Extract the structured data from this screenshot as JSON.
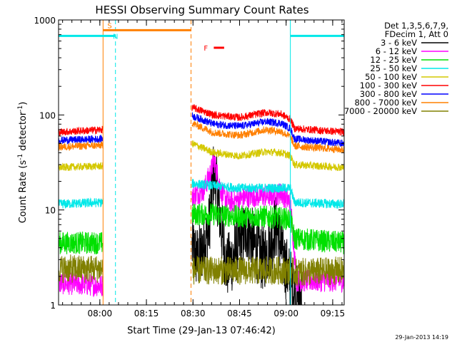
{
  "chart_data": {
    "type": "line",
    "title": "HESSI Observing Summary Count Rates",
    "xlabel": "Start Time (29-Jan-13 07:46:42)",
    "ylabel": "Count Rate (s-1 detector-1)",
    "ylabel_parts": {
      "pre": "Count Rate (s",
      "sup1": "-1",
      "mid": " detector",
      "sup2": "-1",
      "post": ")"
    },
    "yscale": "log",
    "xlim": [
      0,
      5520
    ],
    "ylim": [
      1,
      1000
    ],
    "x_ticks": [
      {
        "t": 798,
        "label": "08:00"
      },
      {
        "t": 1698,
        "label": "08:15"
      },
      {
        "t": 2598,
        "label": "08:30"
      },
      {
        "t": 3498,
        "label": "08:45"
      },
      {
        "t": 4398,
        "label": "09:00"
      },
      {
        "t": 5298,
        "label": "09:15"
      }
    ],
    "x_minor_step": 180,
    "y_ticks": [
      {
        "v": 1,
        "label": "1"
      },
      {
        "v": 10,
        "label": "10"
      },
      {
        "v": 100,
        "label": "100"
      },
      {
        "v": 1000,
        "label": "1000"
      }
    ],
    "legend": {
      "placement": "right",
      "header": [
        "Det 1,3,5,6,7,9,",
        "FDecim 1, Att 0"
      ],
      "entries": [
        {
          "label": "3 - 6 keV",
          "color": "#000000"
        },
        {
          "label": "6 - 12 keV",
          "color": "#ff00ff"
        },
        {
          "label": "12 - 25 keV",
          "color": "#00e000"
        },
        {
          "label": "25 - 50 keV",
          "color": "#00e8e8"
        },
        {
          "label": "50 - 100 keV",
          "color": "#d4c800"
        },
        {
          "label": "100 - 300 keV",
          "color": "#ff0000"
        },
        {
          "label": "300 - 800 keV",
          "color": "#0000ff"
        },
        {
          "label": "800 - 7000 keV",
          "color": "#ff8000"
        },
        {
          "label": "7000 - 20000 keV",
          "color": "#808000"
        }
      ]
    },
    "segments": [
      {
        "name": "gap1",
        "x": [
          0,
          860
        ]
      },
      {
        "name": "gap2",
        "x": [
          2580,
          5520
        ]
      }
    ],
    "series": [
      {
        "name": "3 - 6 keV",
        "color": "#000000",
        "points": [
          [
            2580,
            4
          ],
          [
            2700,
            3
          ],
          [
            2900,
            6
          ],
          [
            3000,
            26
          ],
          [
            3060,
            17
          ],
          [
            3150,
            6
          ],
          [
            3250,
            2.5
          ],
          [
            3350,
            3
          ],
          [
            3500,
            4.5
          ],
          [
            3650,
            6.5
          ],
          [
            3800,
            4
          ],
          [
            3950,
            3
          ],
          [
            4100,
            4.5
          ],
          [
            4200,
            7
          ],
          [
            4350,
            3
          ],
          [
            4480,
            1.8
          ],
          [
            4600,
            1.2
          ],
          [
            4700,
            1.3
          ]
        ],
        "noise": 0.35
      },
      {
        "name": "6 - 12 keV",
        "color": "#ff00ff",
        "points": [
          [
            0,
            1.7
          ],
          [
            860,
            1.6
          ],
          [
            2580,
            14
          ],
          [
            2800,
            16
          ],
          [
            2950,
            26
          ],
          [
            3000,
            34
          ],
          [
            3060,
            25
          ],
          [
            3150,
            15
          ],
          [
            3300,
            12
          ],
          [
            3500,
            13
          ],
          [
            3700,
            14
          ],
          [
            3900,
            14
          ],
          [
            4100,
            14
          ],
          [
            4300,
            15
          ],
          [
            4480,
            12
          ],
          [
            4600,
            1.8
          ],
          [
            5300,
            1.8
          ],
          [
            5520,
            1.8
          ]
        ],
        "noise": 0.12
      },
      {
        "name": "12 - 25 keV",
        "color": "#00e000",
        "points": [
          [
            0,
            4.5
          ],
          [
            860,
            4.5
          ],
          [
            2580,
            9
          ],
          [
            3000,
            9
          ],
          [
            3500,
            8.5
          ],
          [
            4000,
            8.5
          ],
          [
            4480,
            8
          ],
          [
            4560,
            5
          ],
          [
            5520,
            4.5
          ]
        ],
        "noise": 0.12
      },
      {
        "name": "25 - 50 keV",
        "color": "#00e8e8",
        "points": [
          [
            0,
            11.5
          ],
          [
            860,
            12
          ],
          [
            2580,
            19
          ],
          [
            3000,
            18
          ],
          [
            3500,
            17
          ],
          [
            4000,
            17
          ],
          [
            4480,
            17
          ],
          [
            4560,
            12
          ],
          [
            5520,
            11.5
          ]
        ],
        "noise": 0.05
      },
      {
        "name": "50 - 100 keV",
        "color": "#d4c800",
        "points": [
          [
            0,
            28
          ],
          [
            860,
            29
          ],
          [
            2580,
            50
          ],
          [
            3000,
            40
          ],
          [
            3500,
            37
          ],
          [
            4000,
            41
          ],
          [
            4300,
            40
          ],
          [
            4480,
            37
          ],
          [
            4560,
            30
          ],
          [
            5520,
            28
          ]
        ],
        "noise": 0.04
      },
      {
        "name": "100 - 300 keV",
        "color": "#ff0000",
        "points": [
          [
            0,
            66
          ],
          [
            860,
            70
          ],
          [
            2580,
            120
          ],
          [
            3000,
            100
          ],
          [
            3500,
            94
          ],
          [
            4000,
            106
          ],
          [
            4300,
            102
          ],
          [
            4480,
            90
          ],
          [
            4560,
            72
          ],
          [
            5520,
            66
          ]
        ],
        "noise": 0.04
      },
      {
        "name": "300 - 800 keV",
        "color": "#0000ff",
        "points": [
          [
            0,
            54
          ],
          [
            860,
            56
          ],
          [
            2580,
            98
          ],
          [
            3000,
            80
          ],
          [
            3500,
            76
          ],
          [
            4000,
            85
          ],
          [
            4300,
            82
          ],
          [
            4480,
            72
          ],
          [
            4560,
            56
          ],
          [
            5520,
            50
          ]
        ],
        "noise": 0.04
      },
      {
        "name": "800 - 7000 keV",
        "color": "#ff8000",
        "points": [
          [
            0,
            46
          ],
          [
            860,
            48
          ],
          [
            2580,
            82
          ],
          [
            3000,
            65
          ],
          [
            3500,
            61
          ],
          [
            4000,
            70
          ],
          [
            4300,
            67
          ],
          [
            4480,
            59
          ],
          [
            4560,
            47
          ],
          [
            5520,
            43
          ]
        ],
        "noise": 0.04
      },
      {
        "name": "7000 - 20000 keV",
        "color": "#808000",
        "points": [
          [
            0,
            2.4
          ],
          [
            860,
            2.4
          ],
          [
            2580,
            2.3
          ],
          [
            4480,
            2.3
          ],
          [
            4560,
            2.2
          ],
          [
            5520,
            2.3
          ]
        ],
        "noise": 0.15
      }
    ],
    "flags": [
      {
        "label": "S",
        "color": "#ff8000",
        "x": [
          860,
          2560
        ],
        "y": 780
      },
      {
        "label": "N",
        "color": "#00e8e8",
        "x": [
          0,
          1100
        ],
        "y": 680
      },
      {
        "label": "N",
        "color": "#00e8e8",
        "x": [
          4480,
          5520
        ],
        "y": 680
      },
      {
        "label": "F",
        "color": "#ff0000",
        "x": [
          3000,
          3200
        ],
        "y": 510
      }
    ],
    "vlines": [
      {
        "x": 1100,
        "color": "#00e8e8",
        "style": "dashed"
      },
      {
        "x": 2560,
        "color": "#ff8000",
        "style": "dashed"
      },
      {
        "x": 5520,
        "color": "#00e8e8",
        "style": "dashed"
      },
      {
        "x": 860,
        "color": "#ff8000",
        "style": "solid"
      },
      {
        "x": 4480,
        "color": "#00e8e8",
        "style": "solid"
      }
    ]
  },
  "timestamp": "29-Jan-2013 14:19"
}
